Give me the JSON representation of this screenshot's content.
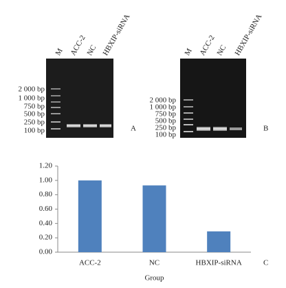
{
  "gel_a": {
    "lanes": [
      "M",
      "ACC-2",
      "NC",
      "HBXIP-siRNA"
    ],
    "markers": [
      "2 000 bp",
      "1 000 bp",
      "750 bp",
      "500 bp",
      "250 bp",
      "100 bp"
    ],
    "label": "A"
  },
  "gel_b": {
    "lanes": [
      "M",
      "ACC-2",
      "NC",
      "HBXIP-siRNA"
    ],
    "markers": [
      "2 000 bp",
      "1 000 bp",
      "750 bp",
      "500 bp",
      "250 bp",
      "100 bp"
    ],
    "label": "B"
  },
  "chart_data": {
    "type": "bar",
    "categories": [
      "ACC-2",
      "NC",
      "HBXIP-siRNA"
    ],
    "values": [
      1.0,
      0.93,
      0.29
    ],
    "color": "#4f81bd",
    "ylim": [
      0,
      1.2
    ],
    "yticks": [
      {
        "value": 0,
        "label": "0.00"
      },
      {
        "value": 0.2,
        "label": "0.20"
      },
      {
        "value": 0.4,
        "label": "0.40"
      },
      {
        "value": 0.6,
        "label": "0.60"
      },
      {
        "value": 0.8,
        "label": "0.80"
      },
      {
        "value": 1.0,
        "label": "1.00"
      },
      {
        "value": 1.2,
        "label": "1.20"
      }
    ],
    "xlabel": "Group",
    "panel_label": "C"
  }
}
